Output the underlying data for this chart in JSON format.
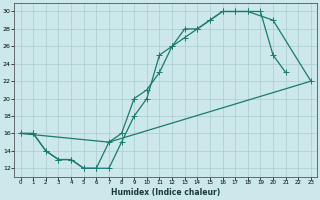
{
  "xlabel": "Humidex (Indice chaleur)",
  "bg_color": "#cce8ea",
  "grid_color": "#aacccc",
  "line_color": "#1a7a6e",
  "xlim": [
    -0.5,
    23.5
  ],
  "ylim": [
    11,
    31
  ],
  "xticks": [
    0,
    1,
    2,
    3,
    4,
    5,
    6,
    7,
    8,
    9,
    10,
    11,
    12,
    13,
    14,
    15,
    16,
    17,
    18,
    19,
    20,
    21,
    22,
    23
  ],
  "yticks": [
    12,
    14,
    16,
    18,
    20,
    22,
    24,
    26,
    28,
    30
  ],
  "line1_x": [
    0,
    1,
    2,
    3,
    4,
    5,
    6,
    7,
    8,
    9,
    10,
    11,
    12,
    13,
    14,
    15,
    16,
    17,
    18,
    19,
    20,
    21
  ],
  "line1_y": [
    16,
    16,
    14,
    13,
    13,
    12,
    12,
    12,
    15,
    18,
    20,
    25,
    26,
    28,
    28,
    29,
    30,
    30,
    30,
    30,
    25,
    23
  ],
  "line2_x": [
    0,
    1,
    2,
    3,
    4,
    5,
    6,
    7,
    8,
    9,
    10,
    11,
    12,
    13,
    14,
    15,
    16,
    17,
    18,
    20,
    23
  ],
  "line2_y": [
    16,
    16,
    14,
    13,
    13,
    12,
    12,
    15,
    16,
    20,
    21,
    23,
    26,
    27,
    28,
    29,
    30,
    30,
    30,
    29,
    22
  ],
  "line3_x": [
    0,
    7,
    23
  ],
  "line3_y": [
    16,
    15,
    22
  ]
}
